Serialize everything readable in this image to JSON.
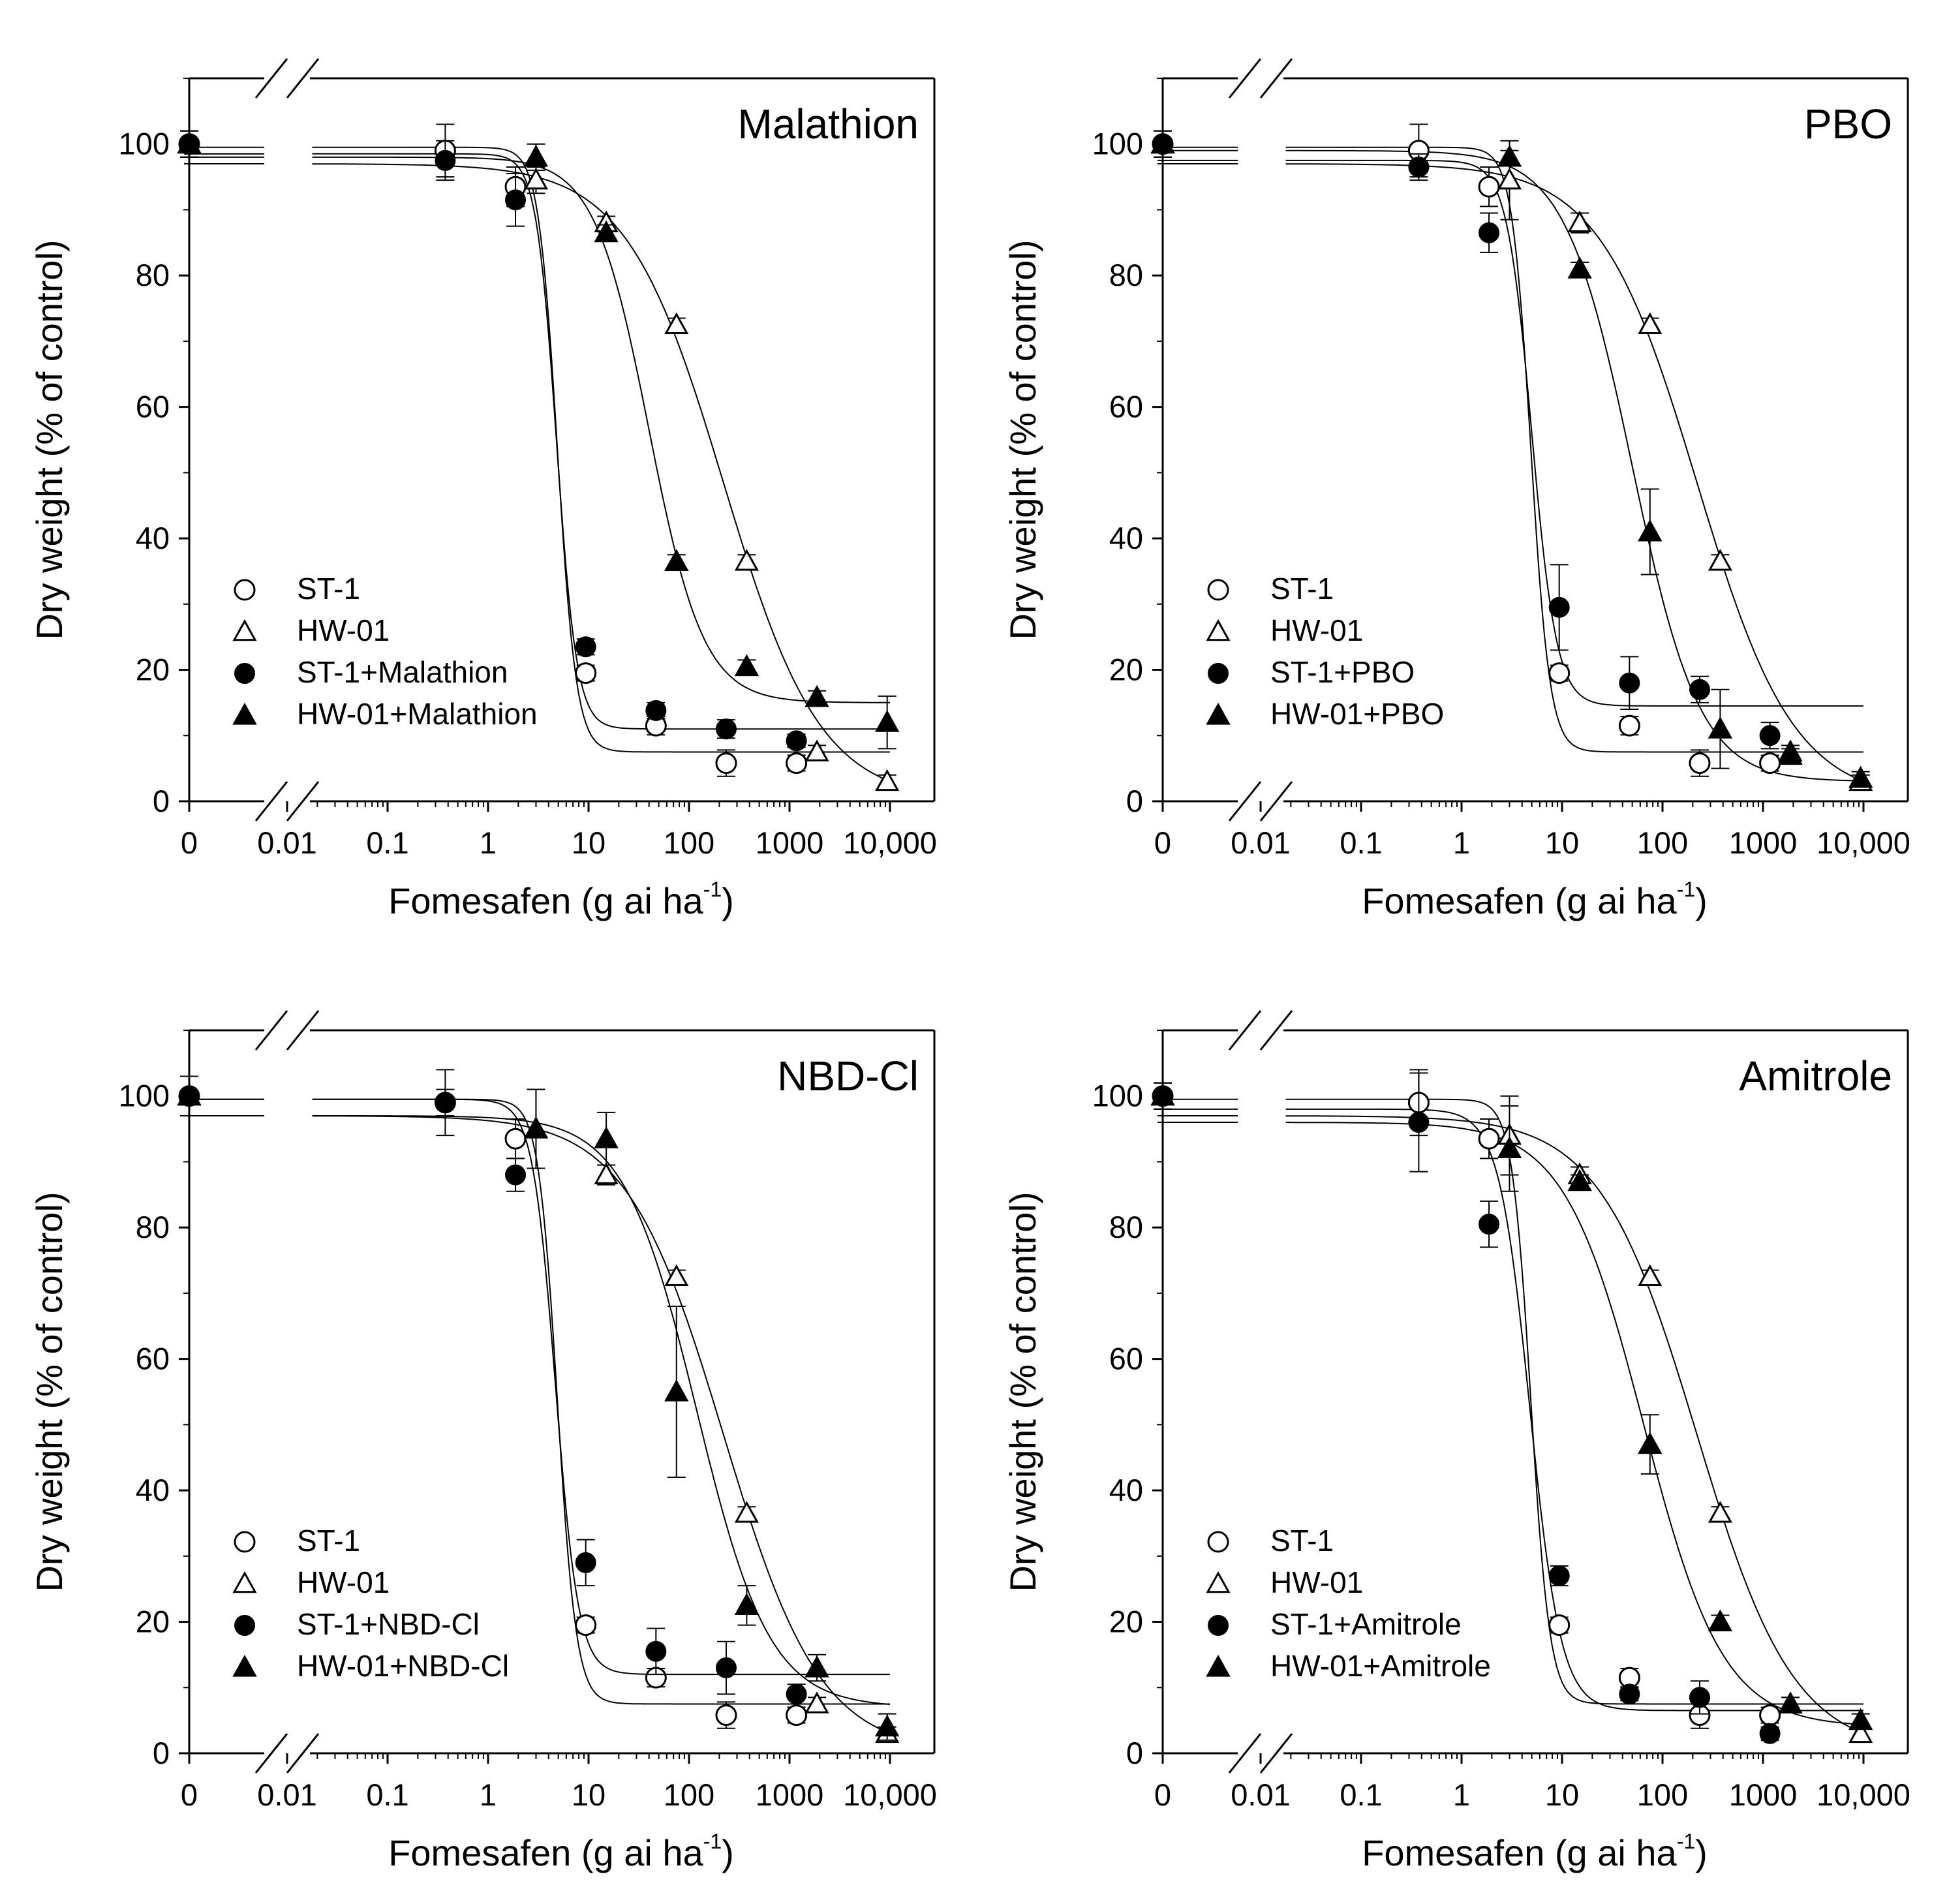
{
  "figure": {
    "panels": [
      {
        "title": "Malathion",
        "xlabel": "Fomesafen (g ai ha",
        "xlabel_sup": "-1",
        "xlabel_close": ")",
        "ylabel": "Dry weight (% of control)",
        "legend": [
          "ST-1",
          "HW-01",
          "ST-1+Malathion",
          "HW-01+Malathion"
        ]
      },
      {
        "title": "PBO",
        "xlabel": "Fomesafen (g ai ha",
        "xlabel_sup": "-1",
        "xlabel_close": ")",
        "ylabel": "Dry weight (% of control)",
        "legend": [
          "ST-1",
          "HW-01",
          "ST-1+PBO",
          "HW-01+PBO"
        ]
      },
      {
        "title": "NBD-Cl",
        "xlabel": "Fomesafen (g ai ha",
        "xlabel_sup": "-1",
        "xlabel_close": ")",
        "ylabel": "Dry weight (% of control)",
        "legend": [
          "ST-1",
          "HW-01",
          "ST-1+NBD-Cl",
          "HW-01+NBD-Cl"
        ]
      },
      {
        "title": "Amitrole",
        "xlabel": "Fomesafen (g ai ha",
        "xlabel_sup": "-1",
        "xlabel_close": ")",
        "ylabel": "Dry weight (% of control)",
        "legend": [
          "ST-1",
          "HW-01",
          "ST-1+Amitrole",
          "HW-01+Amitrole"
        ]
      }
    ]
  },
  "chart_data": [
    {
      "type": "scatter",
      "title": "Malathion",
      "xlabel": "Fomesafen (g ai ha-1)",
      "ylabel": "Dry weight (% of control)",
      "x_scale": "log with break (0 shown as control)",
      "x_tick_labels": [
        "0",
        "0.01",
        "0.1",
        "1",
        "10",
        "100",
        "1000",
        "10,000"
      ],
      "y_tick_labels": [
        "0",
        "20",
        "40",
        "60",
        "80",
        "100"
      ],
      "ylim": [
        0,
        100
      ],
      "legend_position": "bottom-left",
      "series": [
        {
          "name": "ST-1",
          "marker": "open-circle",
          "x": [
            0,
            0.375,
            1.875,
            9.375,
            46.875,
            234.375,
            1171.875
          ],
          "y": [
            100,
            99,
            93.5,
            19.5,
            11.5,
            5.8,
            5.8
          ],
          "err": [
            2,
            4,
            3,
            1.2,
            1.4,
            2,
            1.2
          ],
          "curve": {
            "bottom": 7.5,
            "top": 99.5,
            "ed50": 4.9,
            "slope": 4.6
          }
        },
        {
          "name": "HW-01",
          "marker": "open-triangle",
          "x": [
            0,
            3,
            15,
            75,
            375,
            1875,
            9375
          ],
          "y": [
            100,
            94.5,
            88,
            72.5,
            36.5,
            7.5,
            3
          ],
          "err": [
            2,
            2,
            1,
            1,
            1,
            1,
            1
          ],
          "curve": {
            "bottom": 0,
            "top": 97,
            "ed50": 220,
            "slope": 0.9
          }
        },
        {
          "name": "ST-1+Malathion",
          "marker": "filled-circle",
          "x": [
            0,
            0.375,
            1.875,
            9.375,
            46.875,
            234.375,
            1171.875
          ],
          "y": [
            100,
            97.5,
            91.5,
            23.5,
            13.8,
            11,
            9.2
          ],
          "err": [
            2,
            3,
            4,
            1.2,
            1.2,
            1.4,
            1
          ],
          "curve": {
            "bottom": 11,
            "top": 98.5,
            "ed50": 4.8,
            "slope": 4.3
          }
        },
        {
          "name": "HW-01+Malathion",
          "marker": "filled-triangle",
          "x": [
            0,
            3,
            15,
            75,
            375,
            1875,
            9375
          ],
          "y": [
            100,
            98,
            86.5,
            36.5,
            20.5,
            15.8,
            12
          ],
          "err": [
            2,
            2,
            1.2,
            1,
            1,
            1,
            4
          ],
          "curve": {
            "bottom": 15,
            "top": 98,
            "ed50": 40,
            "slope": 1.6
          }
        }
      ]
    },
    {
      "type": "scatter",
      "title": "PBO",
      "xlabel": "Fomesafen (g ai ha-1)",
      "ylabel": "Dry weight (% of control)",
      "x_scale": "log with break (0 shown as control)",
      "x_tick_labels": [
        "0",
        "0.01",
        "0.1",
        "1",
        "10",
        "100",
        "1000",
        "10,000"
      ],
      "y_tick_labels": [
        "0",
        "20",
        "40",
        "60",
        "80",
        "100"
      ],
      "ylim": [
        0,
        100
      ],
      "legend_position": "bottom-left",
      "series": [
        {
          "name": "ST-1",
          "marker": "open-circle",
          "x": [
            0,
            0.375,
            1.875,
            9.375,
            46.875,
            234.375,
            1171.875
          ],
          "y": [
            100,
            99,
            93.5,
            19.5,
            11.5,
            5.8,
            5.8
          ],
          "err": [
            2,
            4,
            3,
            1.2,
            1.4,
            2,
            1.2
          ],
          "curve": {
            "bottom": 7.5,
            "top": 99.5,
            "ed50": 4.9,
            "slope": 4.6
          }
        },
        {
          "name": "HW-01",
          "marker": "open-triangle",
          "x": [
            0,
            3,
            15,
            75,
            375,
            1875,
            9375
          ],
          "y": [
            100,
            94.5,
            88,
            72.5,
            36.5,
            7.5,
            3
          ],
          "err": [
            2,
            6,
            1.5,
            1,
            1,
            1,
            1
          ],
          "curve": {
            "bottom": 0,
            "top": 97,
            "ed50": 220,
            "slope": 0.9
          }
        },
        {
          "name": "ST-1+PBO",
          "marker": "filled-circle",
          "x": [
            0,
            0.375,
            1.875,
            9.375,
            46.875,
            234.375,
            1171.875
          ],
          "y": [
            100,
            96.5,
            86.5,
            29.5,
            18,
            17,
            10
          ],
          "err": [
            2,
            2,
            3,
            6.5,
            4,
            2,
            2
          ],
          "curve": {
            "bottom": 14.5,
            "top": 97.5,
            "ed50": 5.0,
            "slope": 3.5
          }
        },
        {
          "name": "HW-01+PBO",
          "marker": "filled-triangle",
          "x": [
            0,
            3,
            15,
            75,
            375,
            1875,
            9375
          ],
          "y": [
            100,
            98,
            81,
            41,
            11,
            7,
            3.5
          ],
          "err": [
            2,
            1,
            1,
            6.5,
            6,
            1,
            1
          ],
          "curve": {
            "bottom": 3,
            "top": 99,
            "ed50": 50,
            "slope": 1.3
          }
        }
      ]
    },
    {
      "type": "scatter",
      "title": "NBD-Cl",
      "xlabel": "Fomesafen (g ai ha-1)",
      "ylabel": "Dry weight (% of control)",
      "x_scale": "log with break (0 shown as control)",
      "x_tick_labels": [
        "0",
        "0.01",
        "0.1",
        "1",
        "10",
        "100",
        "1000",
        "10,000"
      ],
      "y_tick_labels": [
        "0",
        "20",
        "40",
        "60",
        "80",
        "100"
      ],
      "ylim": [
        0,
        100
      ],
      "legend_position": "bottom-left",
      "series": [
        {
          "name": "ST-1",
          "marker": "open-circle",
          "x": [
            0,
            0.375,
            1.875,
            9.375,
            46.875,
            234.375,
            1171.875
          ],
          "y": [
            100,
            99,
            93.5,
            19.5,
            11.5,
            5.8,
            5.8
          ],
          "err": [
            3,
            5,
            3,
            1.2,
            1.4,
            2,
            1.2
          ],
          "curve": {
            "bottom": 7.5,
            "top": 99.5,
            "ed50": 4.9,
            "slope": 4.6
          }
        },
        {
          "name": "HW-01",
          "marker": "open-triangle",
          "x": [
            0,
            3,
            15,
            75,
            375,
            1875,
            9375
          ],
          "y": [
            100,
            95,
            88,
            72.5,
            36.5,
            7.5,
            3
          ],
          "err": [
            3,
            6,
            1.5,
            1,
            1,
            1,
            1
          ],
          "curve": {
            "bottom": 0,
            "top": 97,
            "ed50": 220,
            "slope": 0.9
          }
        },
        {
          "name": "ST-1+NBD-Cl",
          "marker": "filled-circle",
          "x": [
            0,
            0.375,
            1.875,
            9.375,
            46.875,
            234.375,
            1171.875
          ],
          "y": [
            100,
            99,
            88,
            29,
            15.5,
            13,
            9
          ],
          "err": [
            3,
            2,
            2.5,
            3.5,
            3.5,
            4,
            1.5
          ],
          "curve": {
            "bottom": 12,
            "top": 99.5,
            "ed50": 4.7,
            "slope": 3.8
          }
        },
        {
          "name": "HW-01+NBD-Cl",
          "marker": "filled-triangle",
          "x": [
            0,
            3,
            15,
            75,
            375,
            1875,
            9375
          ],
          "y": [
            100,
            95,
            93.5,
            55,
            22.5,
            13,
            4
          ],
          "err": [
            3,
            6,
            4,
            13,
            3,
            2,
            2
          ],
          "curve": {
            "bottom": 7,
            "top": 97,
            "ed50": 120,
            "slope": 1.2
          }
        }
      ]
    },
    {
      "type": "scatter",
      "title": "Amitrole",
      "xlabel": "Fomesafen (g ai ha-1)",
      "ylabel": "Dry weight (% of control)",
      "x_scale": "log with break (0 shown as control)",
      "x_tick_labels": [
        "0",
        "0.01",
        "0.1",
        "1",
        "10",
        "100",
        "1000",
        "10,000"
      ],
      "y_tick_labels": [
        "0",
        "20",
        "40",
        "60",
        "80",
        "100"
      ],
      "ylim": [
        0,
        100
      ],
      "legend_position": "bottom-left",
      "series": [
        {
          "name": "ST-1",
          "marker": "open-circle",
          "x": [
            0,
            0.375,
            1.875,
            9.375,
            46.875,
            234.375,
            1171.875
          ],
          "y": [
            100,
            99,
            93.5,
            19.5,
            11.5,
            5.8,
            5.8
          ],
          "err": [
            2,
            5,
            3,
            1.2,
            1.4,
            2,
            1.2
          ],
          "curve": {
            "bottom": 7.5,
            "top": 99.5,
            "ed50": 4.9,
            "slope": 4.6
          }
        },
        {
          "name": "HW-01",
          "marker": "open-triangle",
          "x": [
            0,
            3,
            15,
            75,
            375,
            1875,
            9375
          ],
          "y": [
            100,
            94,
            88,
            72.5,
            36.5,
            7.5,
            3
          ],
          "err": [
            2,
            6,
            1.2,
            1,
            1,
            1,
            1
          ],
          "curve": {
            "bottom": 0,
            "top": 97,
            "ed50": 220,
            "slope": 0.9
          }
        },
        {
          "name": "ST-1+Amitrole",
          "marker": "filled-circle",
          "x": [
            0,
            0.375,
            1.875,
            9.375,
            46.875,
            234.375,
            1171.875
          ],
          "y": [
            100,
            96,
            80.5,
            27,
            9,
            8.5,
            3
          ],
          "err": [
            2,
            7.5,
            3.5,
            1.5,
            1,
            2.5,
            1
          ],
          "curve": {
            "bottom": 6.5,
            "top": 98,
            "ed50": 4.8,
            "slope": 2.8
          }
        },
        {
          "name": "HW-01+Amitrole",
          "marker": "filled-triangle",
          "x": [
            0,
            3,
            15,
            75,
            375,
            1875,
            9375
          ],
          "y": [
            100,
            92,
            87,
            47,
            20,
            7.5,
            5
          ],
          "err": [
            2,
            6.5,
            1,
            4.5,
            1,
            1,
            1
          ],
          "curve": {
            "bottom": 4,
            "top": 96,
            "ed50": 65,
            "slope": 1.1
          }
        }
      ]
    }
  ]
}
